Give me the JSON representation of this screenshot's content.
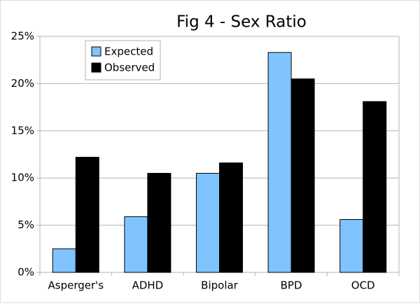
{
  "chart_data": {
    "type": "bar",
    "title": "Fig 4 - Sex Ratio",
    "categories": [
      "Asperger's",
      "ADHD",
      "Bipolar",
      "BPD",
      "OCD"
    ],
    "series": [
      {
        "name": "Expected",
        "color": "#80c4ff",
        "values": [
          2.5,
          5.9,
          10.5,
          23.3,
          5.6
        ]
      },
      {
        "name": "Observed",
        "color": "#000000",
        "values": [
          12.2,
          10.5,
          11.6,
          20.5,
          18.1
        ]
      }
    ],
    "ylim": [
      0,
      25
    ],
    "yticks": [
      {
        "value": 0,
        "label": "0%"
      },
      {
        "value": 5,
        "label": "5%"
      },
      {
        "value": 10,
        "label": "10%"
      },
      {
        "value": 15,
        "label": "15%"
      },
      {
        "value": 20,
        "label": "20%"
      },
      {
        "value": 25,
        "label": "25%"
      }
    ],
    "grid": true,
    "legend": "top-left"
  }
}
